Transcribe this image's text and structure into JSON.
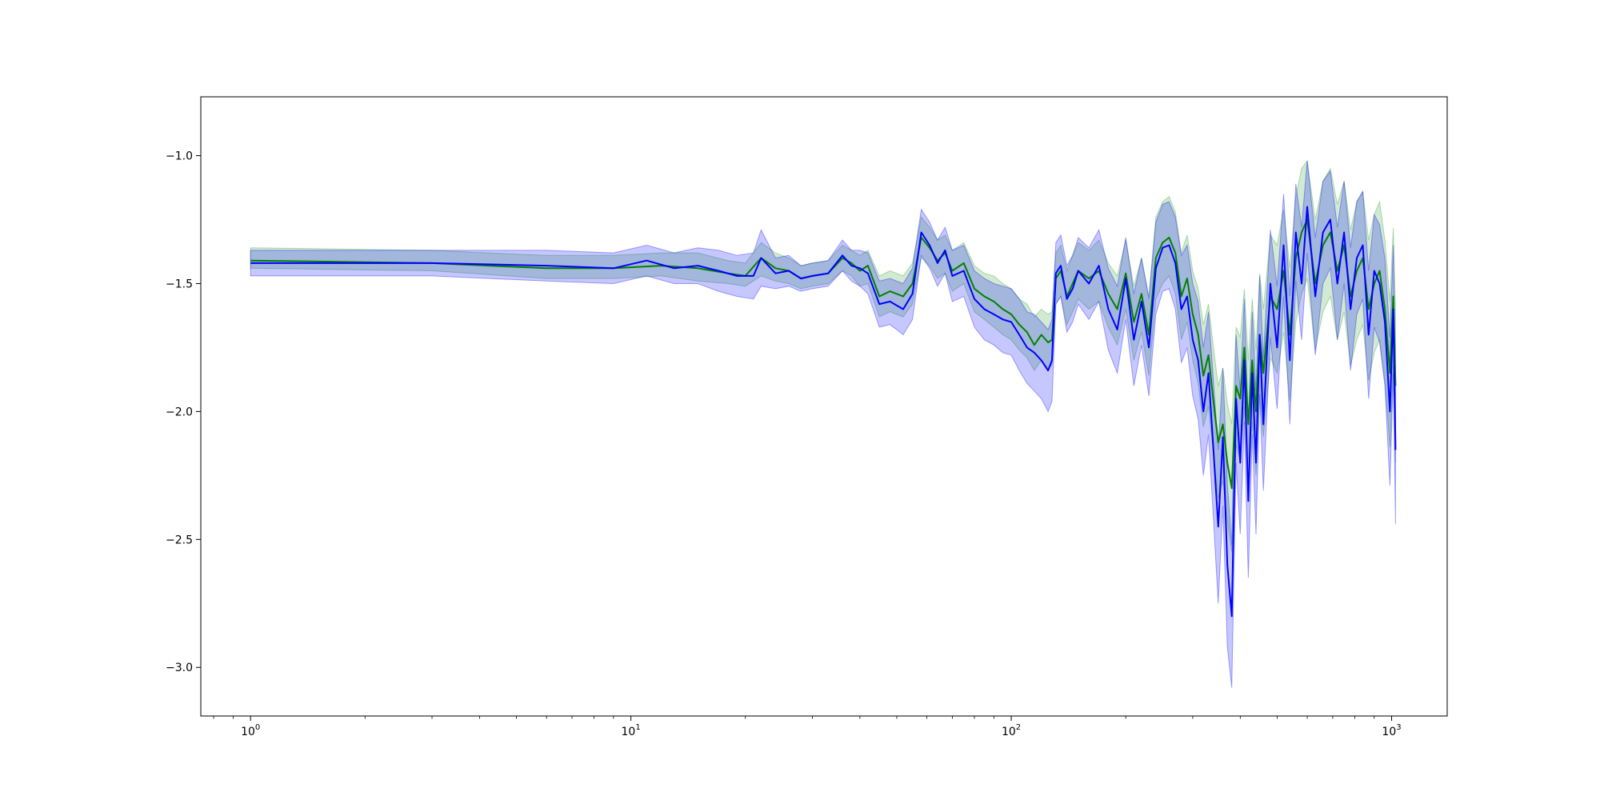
{
  "chart_data": {
    "type": "line",
    "title": "",
    "xlabel": "",
    "ylabel": "",
    "x_scale": "log",
    "xlim": [
      0.74,
      1400
    ],
    "ylim": [
      -3.19,
      -0.77
    ],
    "grid": false,
    "legend": "none",
    "x_ticks": [
      {
        "value": 1,
        "base": "10",
        "exp": "0"
      },
      {
        "value": 10,
        "base": "10",
        "exp": "1"
      },
      {
        "value": 100,
        "base": "10",
        "exp": "2"
      },
      {
        "value": 1000,
        "base": "10",
        "exp": "3"
      }
    ],
    "y_ticks": [
      {
        "value": -1.0,
        "label": "−1.0"
      },
      {
        "value": -1.5,
        "label": "−1.5"
      },
      {
        "value": -2.0,
        "label": "−2.0"
      },
      {
        "value": -2.5,
        "label": "−2.5"
      },
      {
        "value": -3.0,
        "label": "−3.0"
      }
    ],
    "series": [
      {
        "color": "#008000",
        "band_color": "#2ca02c",
        "x": [
          1,
          3,
          6,
          9,
          12,
          15,
          18,
          20,
          22,
          24,
          26,
          28,
          30,
          33,
          36,
          38,
          40,
          42,
          45,
          48,
          52,
          55,
          58,
          61,
          64,
          67,
          70,
          75,
          80,
          85,
          90,
          95,
          100,
          105,
          110,
          115,
          120,
          125,
          128,
          131,
          135,
          140,
          145,
          150,
          160,
          170,
          180,
          190,
          200,
          210,
          220,
          230,
          240,
          250,
          260,
          270,
          280,
          290,
          300,
          310,
          320,
          330,
          340,
          350,
          360,
          370,
          380,
          390,
          400,
          410,
          420,
          430,
          440,
          450,
          460,
          480,
          500,
          520,
          540,
          560,
          580,
          600,
          630,
          660,
          690,
          720,
          750,
          780,
          810,
          840,
          870,
          900,
          930,
          960,
          990,
          1010,
          1024
        ],
        "mean": [
          -1.41,
          -1.42,
          -1.44,
          -1.44,
          -1.43,
          -1.44,
          -1.46,
          -1.47,
          -1.4,
          -1.44,
          -1.45,
          -1.48,
          -1.47,
          -1.46,
          -1.4,
          -1.42,
          -1.45,
          -1.43,
          -1.55,
          -1.53,
          -1.55,
          -1.5,
          -1.32,
          -1.36,
          -1.41,
          -1.38,
          -1.45,
          -1.42,
          -1.52,
          -1.55,
          -1.57,
          -1.6,
          -1.62,
          -1.66,
          -1.69,
          -1.74,
          -1.7,
          -1.73,
          -1.72,
          -1.48,
          -1.45,
          -1.55,
          -1.5,
          -1.45,
          -1.48,
          -1.45,
          -1.54,
          -1.6,
          -1.46,
          -1.65,
          -1.54,
          -1.7,
          -1.4,
          -1.34,
          -1.32,
          -1.38,
          -1.55,
          -1.48,
          -1.62,
          -1.7,
          -1.86,
          -1.78,
          -1.96,
          -2.12,
          -2.05,
          -2.2,
          -2.3,
          -1.9,
          -1.95,
          -1.75,
          -2.05,
          -1.8,
          -2.0,
          -1.7,
          -1.85,
          -1.55,
          -1.6,
          -1.45,
          -1.7,
          -1.4,
          -1.3,
          -1.25,
          -1.5,
          -1.35,
          -1.3,
          -1.45,
          -1.35,
          -1.55,
          -1.45,
          -1.4,
          -1.6,
          -1.5,
          -1.45,
          -1.6,
          -1.85,
          -1.55,
          -1.9
        ],
        "lower": [
          -1.44,
          -1.45,
          -1.48,
          -1.48,
          -1.47,
          -1.49,
          -1.5,
          -1.51,
          -1.47,
          -1.49,
          -1.5,
          -1.52,
          -1.51,
          -1.5,
          -1.45,
          -1.47,
          -1.51,
          -1.5,
          -1.63,
          -1.61,
          -1.63,
          -1.58,
          -1.4,
          -1.43,
          -1.48,
          -1.46,
          -1.53,
          -1.5,
          -1.61,
          -1.64,
          -1.67,
          -1.7,
          -1.72,
          -1.76,
          -1.79,
          -1.84,
          -1.8,
          -1.83,
          -1.82,
          -1.58,
          -1.55,
          -1.66,
          -1.61,
          -1.56,
          -1.6,
          -1.57,
          -1.67,
          -1.74,
          -1.6,
          -1.8,
          -1.69,
          -1.86,
          -1.56,
          -1.5,
          -1.47,
          -1.54,
          -1.72,
          -1.65,
          -1.8,
          -1.89,
          -2.06,
          -1.98,
          -2.17,
          -2.34,
          -2.27,
          -2.43,
          -2.55,
          -2.13,
          -2.19,
          -1.98,
          -2.3,
          -2.04,
          -2.25,
          -1.94,
          -2.1,
          -1.79,
          -1.85,
          -1.69,
          -1.96,
          -1.65,
          -1.54,
          -1.48,
          -1.76,
          -1.61,
          -1.55,
          -1.72,
          -1.61,
          -1.82,
          -1.72,
          -1.66,
          -1.88,
          -1.77,
          -1.72,
          -1.88,
          -2.14,
          -1.82,
          -2.2
        ],
        "upper": [
          -1.36,
          -1.37,
          -1.39,
          -1.39,
          -1.38,
          -1.38,
          -1.41,
          -1.42,
          -1.34,
          -1.38,
          -1.4,
          -1.43,
          -1.42,
          -1.41,
          -1.35,
          -1.37,
          -1.39,
          -1.37,
          -1.47,
          -1.45,
          -1.47,
          -1.42,
          -1.24,
          -1.28,
          -1.33,
          -1.31,
          -1.37,
          -1.34,
          -1.43,
          -1.46,
          -1.47,
          -1.5,
          -1.52,
          -1.56,
          -1.58,
          -1.63,
          -1.6,
          -1.62,
          -1.61,
          -1.38,
          -1.35,
          -1.45,
          -1.39,
          -1.34,
          -1.37,
          -1.33,
          -1.42,
          -1.47,
          -1.33,
          -1.51,
          -1.4,
          -1.55,
          -1.24,
          -1.18,
          -1.16,
          -1.22,
          -1.38,
          -1.31,
          -1.45,
          -1.52,
          -1.66,
          -1.58,
          -1.75,
          -1.9,
          -1.83,
          -1.97,
          -2.05,
          -1.67,
          -1.71,
          -1.52,
          -1.8,
          -1.56,
          -1.76,
          -1.46,
          -1.6,
          -1.31,
          -1.35,
          -1.21,
          -1.44,
          -1.16,
          -1.05,
          -1.02,
          -1.25,
          -1.1,
          -1.05,
          -1.19,
          -1.1,
          -1.29,
          -1.18,
          -1.14,
          -1.33,
          -1.23,
          -1.18,
          -1.33,
          -1.57,
          -1.28,
          -1.6
        ]
      },
      {
        "color": "#0000ff",
        "band_color": "#0000ff",
        "x": [
          1,
          3,
          6,
          9,
          11,
          13,
          15,
          17,
          19,
          21,
          22,
          24,
          26,
          28,
          30,
          33,
          36,
          38,
          40,
          42,
          45,
          48,
          52,
          55,
          58,
          61,
          64,
          67,
          70,
          75,
          80,
          85,
          90,
          95,
          100,
          105,
          110,
          115,
          120,
          125,
          128,
          131,
          135,
          140,
          145,
          150,
          160,
          170,
          180,
          190,
          200,
          210,
          220,
          230,
          240,
          250,
          260,
          270,
          280,
          290,
          300,
          310,
          320,
          330,
          340,
          350,
          360,
          370,
          380,
          390,
          400,
          410,
          420,
          430,
          440,
          450,
          460,
          480,
          500,
          520,
          540,
          560,
          580,
          600,
          630,
          660,
          690,
          720,
          750,
          780,
          810,
          840,
          870,
          900,
          930,
          960,
          990,
          1010,
          1024
        ],
        "mean": [
          -1.42,
          -1.42,
          -1.43,
          -1.44,
          -1.41,
          -1.44,
          -1.43,
          -1.45,
          -1.47,
          -1.47,
          -1.4,
          -1.46,
          -1.45,
          -1.48,
          -1.47,
          -1.46,
          -1.39,
          -1.43,
          -1.44,
          -1.46,
          -1.58,
          -1.57,
          -1.6,
          -1.54,
          -1.3,
          -1.35,
          -1.42,
          -1.37,
          -1.47,
          -1.45,
          -1.56,
          -1.6,
          -1.62,
          -1.64,
          -1.65,
          -1.7,
          -1.75,
          -1.77,
          -1.8,
          -1.84,
          -1.8,
          -1.46,
          -1.43,
          -1.56,
          -1.52,
          -1.45,
          -1.5,
          -1.43,
          -1.6,
          -1.68,
          -1.48,
          -1.72,
          -1.57,
          -1.75,
          -1.44,
          -1.36,
          -1.35,
          -1.42,
          -1.6,
          -1.55,
          -1.72,
          -1.8,
          -2.0,
          -1.85,
          -2.15,
          -2.45,
          -2.1,
          -2.6,
          -2.8,
          -1.95,
          -2.2,
          -1.8,
          -2.35,
          -1.85,
          -2.2,
          -1.7,
          -2.05,
          -1.5,
          -1.75,
          -1.35,
          -1.8,
          -1.3,
          -1.5,
          -1.2,
          -1.55,
          -1.3,
          -1.25,
          -1.5,
          -1.3,
          -1.6,
          -1.4,
          -1.35,
          -1.7,
          -1.45,
          -1.5,
          -1.65,
          -2.0,
          -1.6,
          -2.15
        ],
        "lower": [
          -1.47,
          -1.47,
          -1.49,
          -1.5,
          -1.47,
          -1.5,
          -1.5,
          -1.53,
          -1.55,
          -1.56,
          -1.51,
          -1.52,
          -1.51,
          -1.53,
          -1.52,
          -1.51,
          -1.45,
          -1.49,
          -1.51,
          -1.54,
          -1.67,
          -1.66,
          -1.7,
          -1.64,
          -1.39,
          -1.44,
          -1.51,
          -1.46,
          -1.57,
          -1.55,
          -1.67,
          -1.72,
          -1.74,
          -1.77,
          -1.78,
          -1.84,
          -1.89,
          -1.92,
          -1.95,
          -2.0,
          -1.96,
          -1.58,
          -1.55,
          -1.69,
          -1.65,
          -1.58,
          -1.64,
          -1.57,
          -1.76,
          -1.85,
          -1.64,
          -1.9,
          -1.74,
          -1.94,
          -1.62,
          -1.53,
          -1.52,
          -1.6,
          -1.81,
          -1.75,
          -1.94,
          -2.03,
          -2.25,
          -2.09,
          -2.42,
          -2.75,
          -2.37,
          -2.92,
          -3.08,
          -2.2,
          -2.48,
          -2.04,
          -2.65,
          -2.09,
          -2.48,
          -1.93,
          -2.31,
          -1.71,
          -1.99,
          -1.55,
          -2.05,
          -1.49,
          -1.72,
          -1.38,
          -1.78,
          -1.5,
          -1.44,
          -1.72,
          -1.5,
          -1.84,
          -1.62,
          -1.56,
          -1.95,
          -1.67,
          -1.73,
          -1.9,
          -2.29,
          -1.85,
          -2.44
        ],
        "upper": [
          -1.37,
          -1.37,
          -1.37,
          -1.38,
          -1.35,
          -1.38,
          -1.36,
          -1.37,
          -1.39,
          -1.38,
          -1.29,
          -1.4,
          -1.39,
          -1.43,
          -1.42,
          -1.41,
          -1.33,
          -1.37,
          -1.37,
          -1.38,
          -1.49,
          -1.48,
          -1.5,
          -1.44,
          -1.21,
          -1.26,
          -1.33,
          -1.28,
          -1.37,
          -1.35,
          -1.45,
          -1.48,
          -1.5,
          -1.51,
          -1.52,
          -1.56,
          -1.61,
          -1.62,
          -1.65,
          -1.68,
          -1.64,
          -1.34,
          -1.31,
          -1.43,
          -1.39,
          -1.32,
          -1.36,
          -1.29,
          -1.44,
          -1.51,
          -1.32,
          -1.54,
          -1.4,
          -1.56,
          -1.26,
          -1.19,
          -1.18,
          -1.24,
          -1.39,
          -1.35,
          -1.5,
          -1.57,
          -1.75,
          -1.61,
          -1.88,
          -2.15,
          -1.83,
          -2.28,
          -2.52,
          -1.7,
          -1.92,
          -1.56,
          -2.05,
          -1.61,
          -1.92,
          -1.47,
          -1.79,
          -1.29,
          -1.51,
          -1.15,
          -1.55,
          -1.11,
          -1.28,
          -1.02,
          -1.32,
          -1.1,
          -1.06,
          -1.28,
          -1.1,
          -1.36,
          -1.18,
          -1.14,
          -1.45,
          -1.23,
          -1.27,
          -1.4,
          -1.71,
          -1.35,
          -1.86
        ]
      }
    ]
  }
}
